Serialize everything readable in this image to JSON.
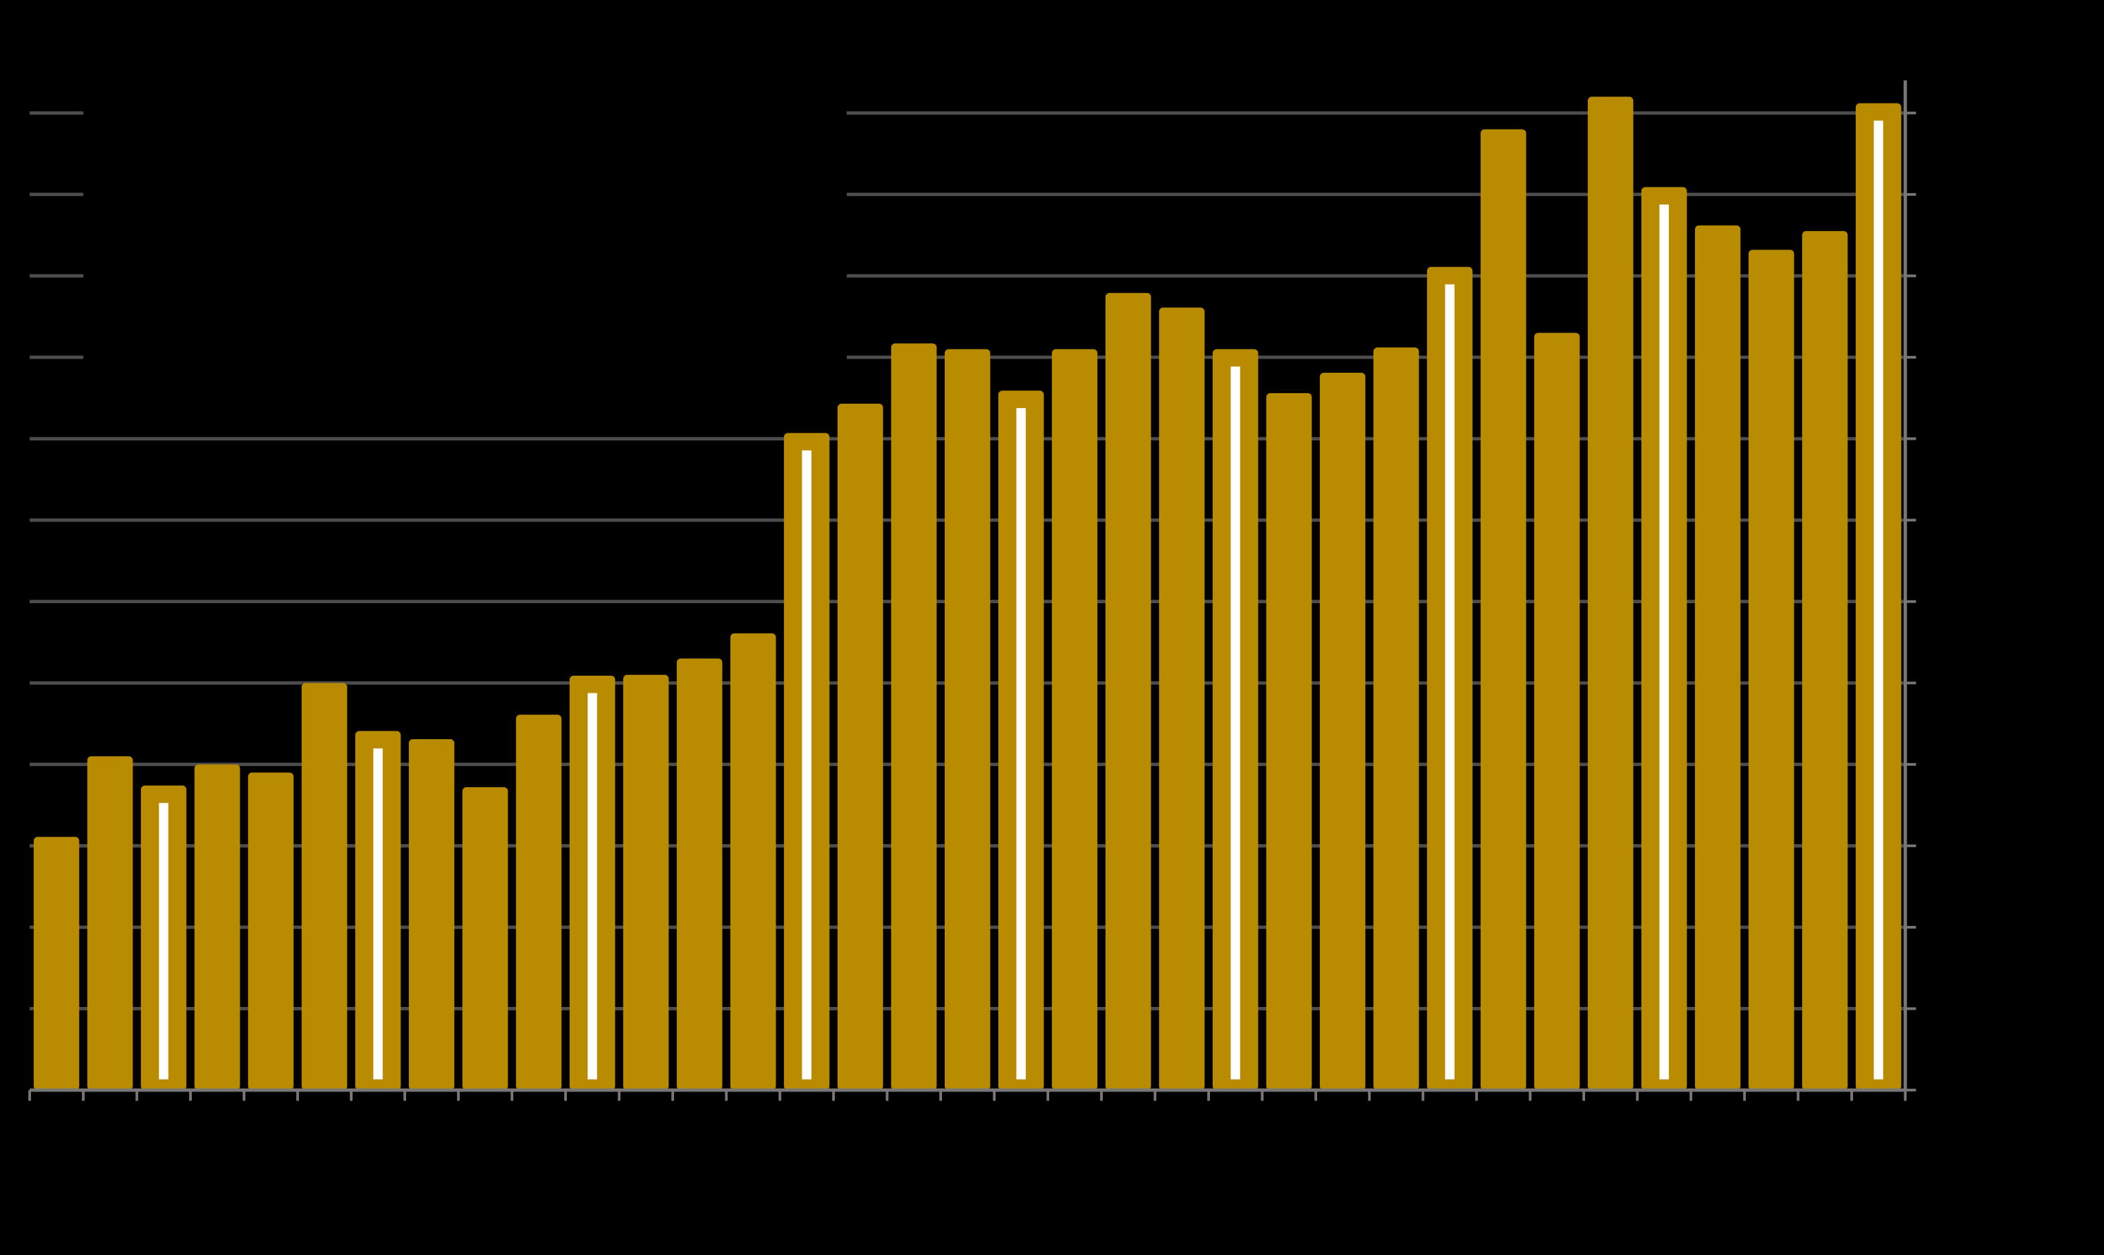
{
  "chart_data": {
    "type": "bar",
    "categories": [
      null,
      null,
      null,
      null,
      null,
      null,
      null,
      null,
      null,
      null,
      null,
      null,
      null,
      null,
      null,
      null,
      null,
      null,
      null,
      null,
      null,
      null,
      null,
      null,
      null,
      null,
      null,
      null,
      null,
      null,
      null,
      null,
      null,
      null,
      null
    ],
    "values": [
      3.11,
      4.1,
      3.74,
      4.0,
      3.9,
      5.0,
      4.41,
      4.31,
      3.72,
      4.61,
      5.09,
      5.1,
      5.3,
      5.61,
      8.07,
      8.43,
      9.17,
      9.1,
      8.59,
      9.1,
      9.79,
      9.61,
      9.1,
      8.56,
      8.81,
      9.12,
      10.11,
      11.8,
      9.3,
      12.2,
      11.09,
      10.62,
      10.32,
      10.55,
      12.12
    ],
    "highlighted": [
      false,
      false,
      true,
      false,
      false,
      false,
      true,
      false,
      false,
      false,
      true,
      false,
      false,
      false,
      true,
      false,
      false,
      false,
      true,
      false,
      false,
      false,
      true,
      false,
      false,
      false,
      true,
      false,
      false,
      false,
      true,
      false,
      false,
      false,
      true
    ],
    "color": "#b98b00",
    "highlight_color": "#ffffff",
    "ylim": [
      0,
      12.4
    ],
    "yticks": [
      0,
      1,
      2,
      3,
      4,
      5,
      6,
      7,
      8,
      9,
      10,
      11,
      12
    ],
    "grid": true
  }
}
